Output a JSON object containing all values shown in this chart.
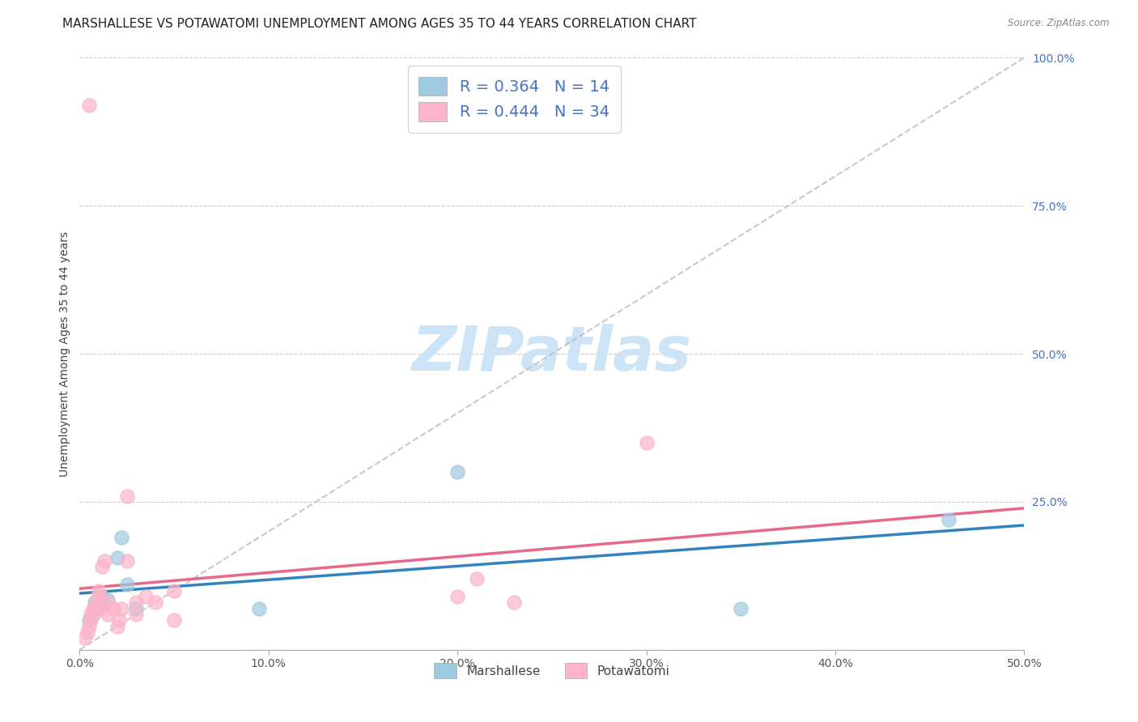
{
  "title": "MARSHALLESE VS POTAWATOMI UNEMPLOYMENT AMONG AGES 35 TO 44 YEARS CORRELATION CHART",
  "source": "Source: ZipAtlas.com",
  "ylabel": "Unemployment Among Ages 35 to 44 years",
  "xlim": [
    0,
    0.5
  ],
  "ylim": [
    0,
    1.0
  ],
  "xticks": [
    0.0,
    0.1,
    0.2,
    0.3,
    0.4,
    0.5
  ],
  "yticks": [
    0.0,
    0.25,
    0.5,
    0.75,
    1.0
  ],
  "ytick_labels": [
    "",
    "25.0%",
    "50.0%",
    "75.0%",
    "100.0%"
  ],
  "xtick_labels": [
    "0.0%",
    "10.0%",
    "20.0%",
    "30.0%",
    "40.0%",
    "50.0%"
  ],
  "marshallese_x": [
    0.005,
    0.007,
    0.008,
    0.01,
    0.012,
    0.015,
    0.02,
    0.022,
    0.025,
    0.03,
    0.095,
    0.2,
    0.35,
    0.46
  ],
  "marshallese_y": [
    0.05,
    0.06,
    0.08,
    0.075,
    0.09,
    0.085,
    0.155,
    0.19,
    0.11,
    0.07,
    0.07,
    0.3,
    0.07,
    0.22
  ],
  "potawatomi_x": [
    0.003,
    0.004,
    0.005,
    0.005,
    0.006,
    0.006,
    0.007,
    0.007,
    0.008,
    0.009,
    0.01,
    0.01,
    0.01,
    0.011,
    0.012,
    0.013,
    0.015,
    0.015,
    0.018,
    0.02,
    0.021,
    0.022,
    0.025,
    0.025,
    0.03,
    0.03,
    0.035,
    0.04,
    0.2,
    0.21,
    0.23,
    0.3,
    0.05,
    0.05
  ],
  "potawatomi_y": [
    0.02,
    0.03,
    0.04,
    0.92,
    0.05,
    0.06,
    0.06,
    0.07,
    0.07,
    0.08,
    0.08,
    0.09,
    0.1,
    0.07,
    0.14,
    0.15,
    0.06,
    0.08,
    0.07,
    0.04,
    0.05,
    0.07,
    0.26,
    0.15,
    0.06,
    0.08,
    0.09,
    0.08,
    0.09,
    0.12,
    0.08,
    0.35,
    0.1,
    0.05
  ],
  "marshallese_R": 0.364,
  "marshallese_N": 14,
  "potawatomi_R": 0.444,
  "potawatomi_N": 34,
  "blue_scatter_color": "#9ecae1",
  "pink_scatter_color": "#fbb4c9",
  "blue_line_color": "#3182bd",
  "pink_line_color": "#e8688a",
  "diagonal_color": "#bbbbbb",
  "watermark_color": "#cce4f5",
  "title_fontsize": 11,
  "axis_label_fontsize": 10,
  "tick_fontsize": 10,
  "legend_fontsize": 14,
  "legend_text_color": "#4472c4",
  "ytick_color": "#4472c4"
}
